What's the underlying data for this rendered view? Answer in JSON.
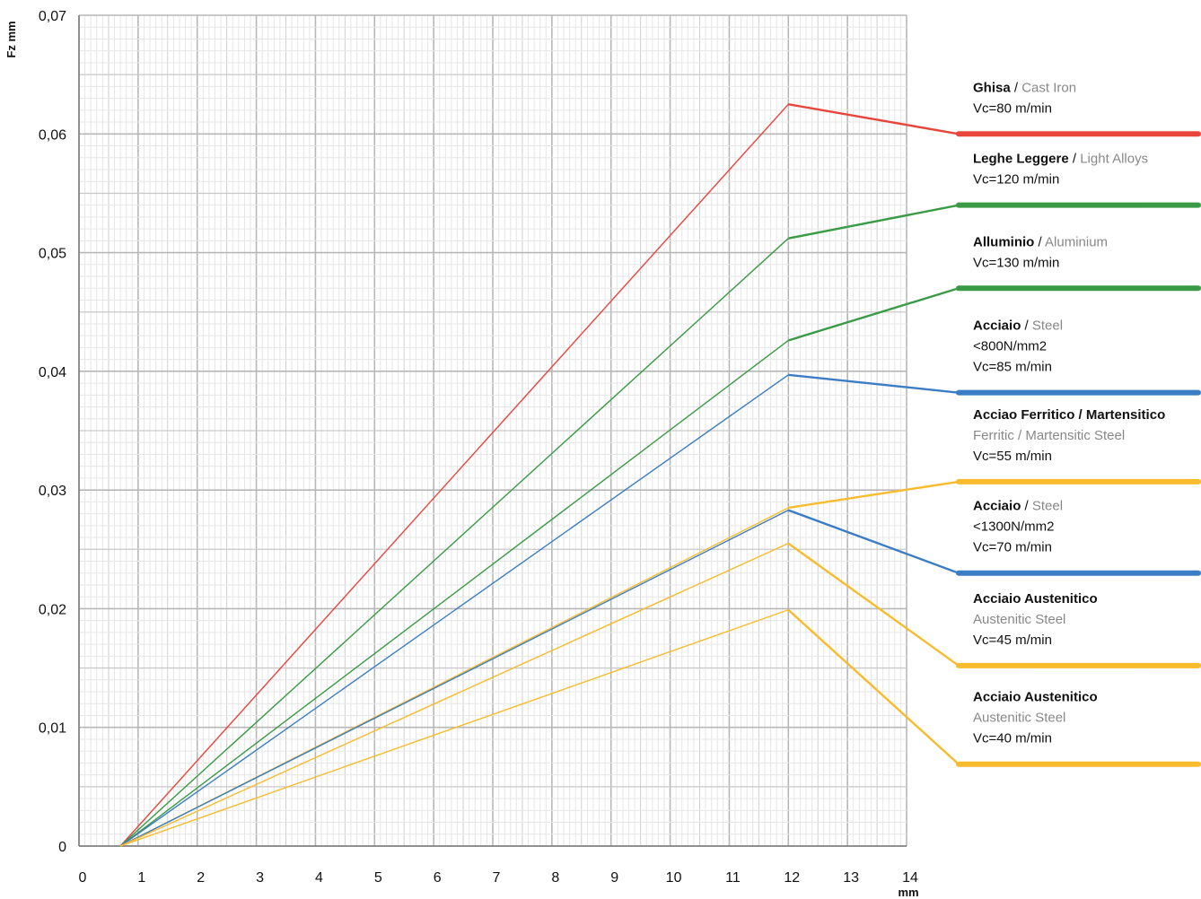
{
  "chart_data": {
    "type": "line",
    "ylabel": "Fz mm",
    "xlabel": "mm",
    "xlim": [
      0,
      14
    ],
    "ylim": [
      0,
      0.07
    ],
    "x_ticks": [
      "0",
      "1",
      "2",
      "3",
      "4",
      "5",
      "6",
      "7",
      "8",
      "9",
      "10",
      "11",
      "12",
      "13",
      "14"
    ],
    "y_ticks": [
      "0",
      "0,01",
      "0,02",
      "0,03",
      "0,04",
      "0,05",
      "0,06",
      "0,07"
    ],
    "grid": true,
    "legend_position": "right",
    "series": [
      {
        "color": "#e8453c",
        "points": [
          [
            0.7,
            0
          ],
          [
            12,
            0.0625
          ]
        ],
        "legend_y": 0.06,
        "label_lines": [
          {
            "bold": "Ghisa",
            "sep": " / ",
            "sub": "Cast Iron"
          },
          {
            "dark": "Vc=80 m/min"
          }
        ]
      },
      {
        "color": "#3a9a45",
        "points": [
          [
            0.7,
            0
          ],
          [
            12,
            0.0512
          ]
        ],
        "legend_y": 0.054,
        "label_lines": [
          {
            "bold": "Leghe Leggere",
            "sep": " / ",
            "sub": "Light Alloys"
          },
          {
            "dark": "Vc=120 m/min"
          }
        ]
      },
      {
        "color": "#3a9a45",
        "points": [
          [
            0.7,
            0
          ],
          [
            12,
            0.0426
          ]
        ],
        "legend_y": 0.047,
        "label_lines": [
          {
            "bold": "Alluminio",
            "sep": " / ",
            "sub": "Aluminium"
          },
          {
            "dark": "Vc=130 m/min"
          }
        ]
      },
      {
        "color": "#3b7dc4",
        "points": [
          [
            0.7,
            0
          ],
          [
            12,
            0.0397
          ]
        ],
        "legend_y": 0.0382,
        "label_lines": [
          {
            "bold": "Acciaio",
            "sep": " / ",
            "sub": "Steel"
          },
          {
            "dark": "<800N/mm2"
          },
          {
            "dark": "Vc=85 m/min"
          }
        ]
      },
      {
        "color": "#f7bb2b",
        "points": [
          [
            0.7,
            0
          ],
          [
            12,
            0.0285
          ]
        ],
        "legend_y": 0.0307,
        "label_lines": [
          {
            "bold": "Acciao Ferritico / Martensitico"
          },
          {
            "sub": "Ferritic / Martensitic Steel"
          },
          {
            "dark": "Vc=55 m/min"
          }
        ]
      },
      {
        "color": "#3b7dc4",
        "points": [
          [
            0.7,
            0
          ],
          [
            12,
            0.0283
          ]
        ],
        "legend_y": 0.023,
        "label_lines": [
          {
            "bold": "Acciaio",
            "sep": " / ",
            "sub": "Steel"
          },
          {
            "dark": "<1300N/mm2"
          },
          {
            "dark": "Vc=70 m/min"
          }
        ]
      },
      {
        "color": "#f7bb2b",
        "points": [
          [
            0.7,
            0
          ],
          [
            12,
            0.0255
          ]
        ],
        "legend_y": 0.0152,
        "label_lines": [
          {
            "bold": "Acciaio Austenitico"
          },
          {
            "sub": "Austenitic Steel"
          },
          {
            "dark": "Vc=45 m/min"
          }
        ]
      },
      {
        "color": "#f7bb2b",
        "points": [
          [
            0.7,
            0
          ],
          [
            12,
            0.0199
          ]
        ],
        "legend_y": 0.0069,
        "label_lines": [
          {
            "bold": "Acciaio Austenitico"
          },
          {
            "sub": "Austenitic Steel"
          },
          {
            "dark": "Vc=40 m/min"
          }
        ]
      }
    ]
  }
}
